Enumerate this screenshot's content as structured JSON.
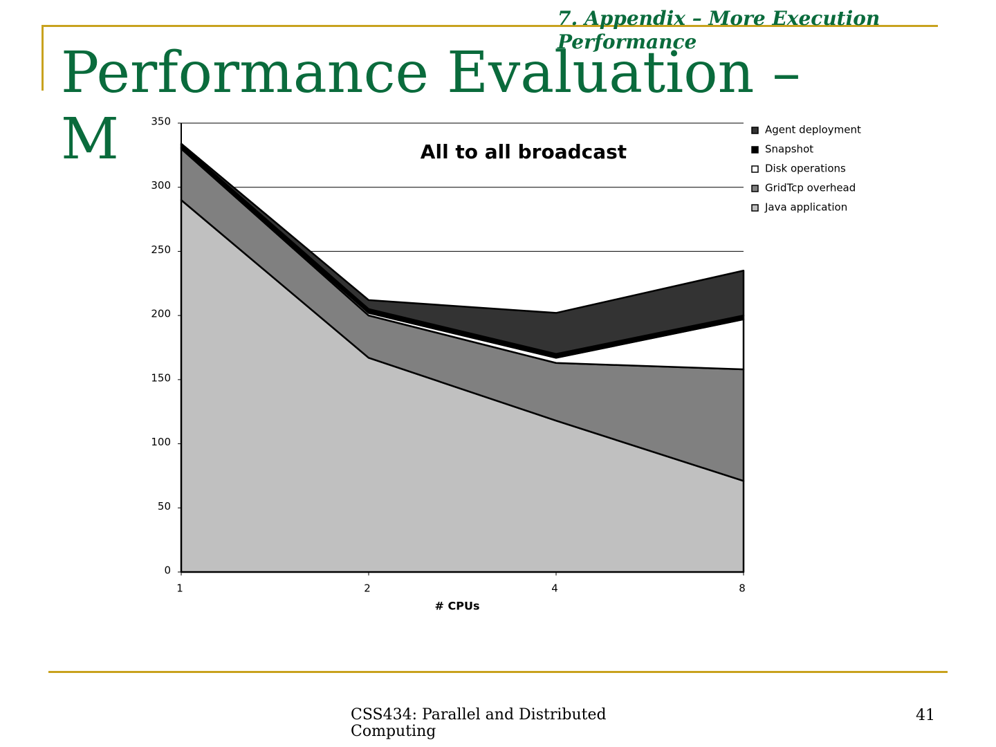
{
  "slide": {
    "title": "Performance Evaluation – M",
    "section": "7. Appendix – More Execution Performance",
    "footer": "CSS434: Parallel and Distributed Computing",
    "page_number": "41"
  },
  "chart_data": {
    "type": "stacked_area",
    "title": "All to all broadcast",
    "x_label": "# CPUs",
    "categories": [
      "1",
      "2",
      "4",
      "8"
    ],
    "series": [
      {
        "name": "Java application",
        "color": "#c0c0c0",
        "values": [
          290,
          167,
          118,
          71
        ]
      },
      {
        "name": "GridTcp overhead",
        "color": "#808080",
        "values": [
          40,
          33,
          45,
          87
        ]
      },
      {
        "name": "Disk operations",
        "color": "#ffffff",
        "values": [
          1,
          2,
          4,
          39
        ]
      },
      {
        "name": "Snapshot",
        "color": "#000000",
        "values": [
          2,
          3,
          3,
          3
        ]
      },
      {
        "name": "Agent deployment",
        "color": "#333333",
        "values": [
          1,
          7,
          32,
          35
        ]
      }
    ],
    "ylim": [
      0,
      350
    ],
    "yticks": [
      0,
      50,
      100,
      150,
      200,
      250,
      300,
      350
    ],
    "grid": true,
    "legend": "right"
  }
}
